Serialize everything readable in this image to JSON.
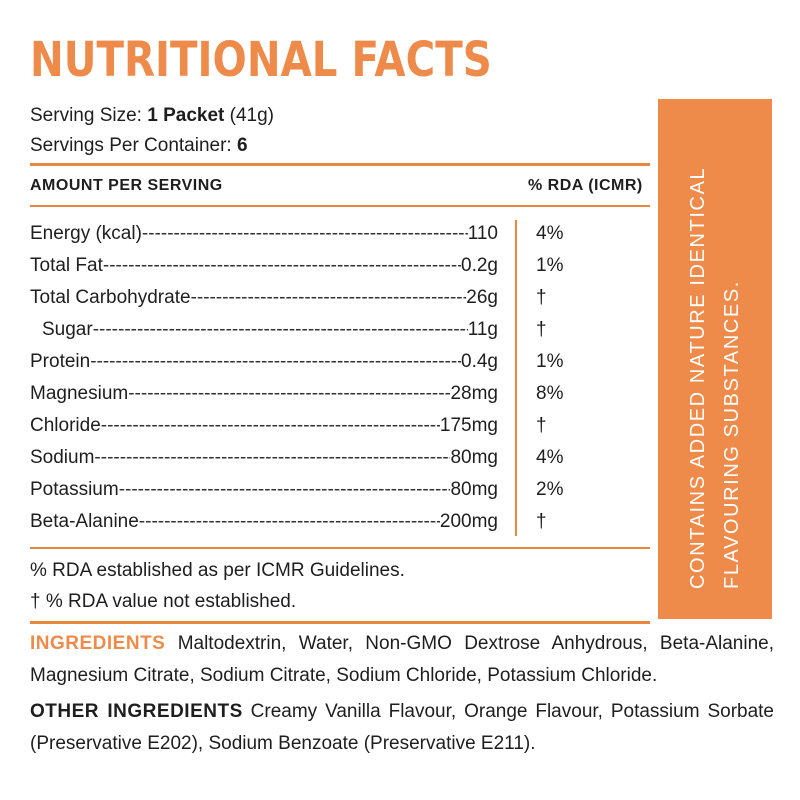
{
  "title": "NUTRITIONAL FACTS",
  "serving_size": {
    "label": "Serving Size:",
    "value": "1 Packet",
    "extra": "(41g)"
  },
  "servings_per_container": {
    "label": "Servings Per Container:",
    "value": "6"
  },
  "table": {
    "header_amount": "AMOUNT PER SERVING",
    "header_rda": "% RDA (ICMR)",
    "rows": [
      {
        "name": "Energy (kcal)",
        "amount": "110",
        "rda": "4%"
      },
      {
        "name": "Total Fat",
        "amount": "0.2g",
        "rda": "1%"
      },
      {
        "name": "Total Carbohydrate",
        "amount": "26g",
        "rda": "†"
      },
      {
        "name": "Sugar",
        "amount": "11g",
        "rda": "†"
      },
      {
        "name": "Protein",
        "amount": "0.4g",
        "rda": "1%"
      },
      {
        "name": "Magnesium",
        "amount": "28mg",
        "rda": "8%"
      },
      {
        "name": "Chloride",
        "amount": "175mg",
        "rda": "†"
      },
      {
        "name": "Sodium",
        "amount": "80mg",
        "rda": "4%"
      },
      {
        "name": "Potassium",
        "amount": "80mg",
        "rda": "2%"
      },
      {
        "name": "Beta-Alanine",
        "amount": "200mg",
        "rda": "†"
      }
    ]
  },
  "notes": {
    "rda_note": "% RDA established as per ICMR Guidelines.",
    "dagger_note": "† % RDA value not established."
  },
  "side_panel": {
    "line1": "CONTAINS ADDED NATURE IDENTICAL",
    "line2": "FLAVOURING SUBSTANCES."
  },
  "ingredients": {
    "label": "INGREDIENTS",
    "text": "Maltodextrin, Water, Non-GMO Dextrose Anhydrous, Beta-Alanine, Magnesium Citrate, Sodium Citrate, Sodium Chloride, Potassium Chloride."
  },
  "other_ingredients": {
    "label": "OTHER INGREDIENTS",
    "text": "Creamy Vanilla Flavour, Orange Flavour, Potassium Sorbate (Preservative E202), Sodium Benzoate (Preservative E211)."
  },
  "colors": {
    "accent": "#ee8b4a",
    "text": "#1e1e1e",
    "background": "#ffffff"
  }
}
